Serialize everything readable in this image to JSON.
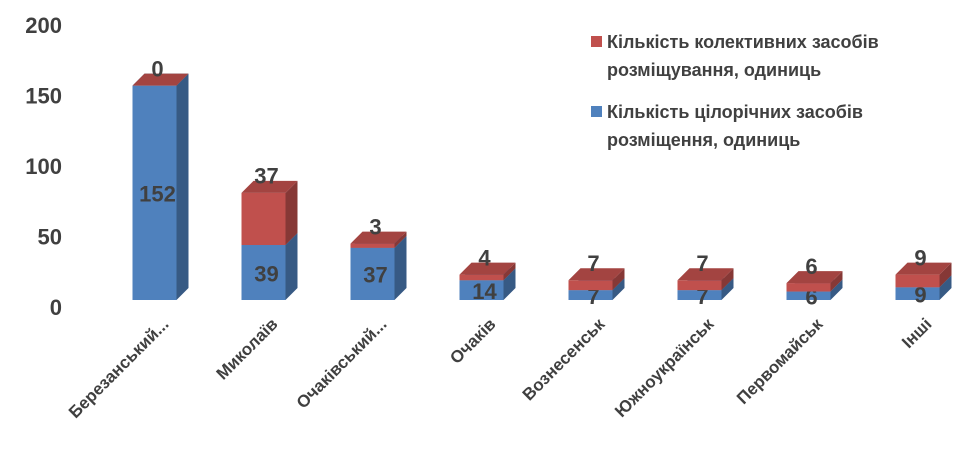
{
  "chart_data": {
    "type": "bar3d_stacked",
    "categories": [
      "Березанський...",
      "Миколаїв",
      "Очаківський...",
      "Очаків",
      "Вознесенськ",
      "Южноукраїнськ",
      "Первомайськ",
      "Інші"
    ],
    "series": [
      {
        "name": "Кількість цілорічних засобів розміщення, одиниць",
        "color": "#4f81bd",
        "values": [
          152,
          39,
          37,
          14,
          7,
          7,
          6,
          9
        ]
      },
      {
        "name": "Кількість колективних засобів розміщування, одиниць",
        "color": "#c0504d",
        "values": [
          0,
          37,
          3,
          4,
          7,
          7,
          6,
          9
        ]
      }
    ],
    "ylim": [
      0,
      200
    ],
    "yticks": [
      0,
      50,
      100,
      150,
      200
    ],
    "grid": false,
    "legend": "top-right"
  }
}
